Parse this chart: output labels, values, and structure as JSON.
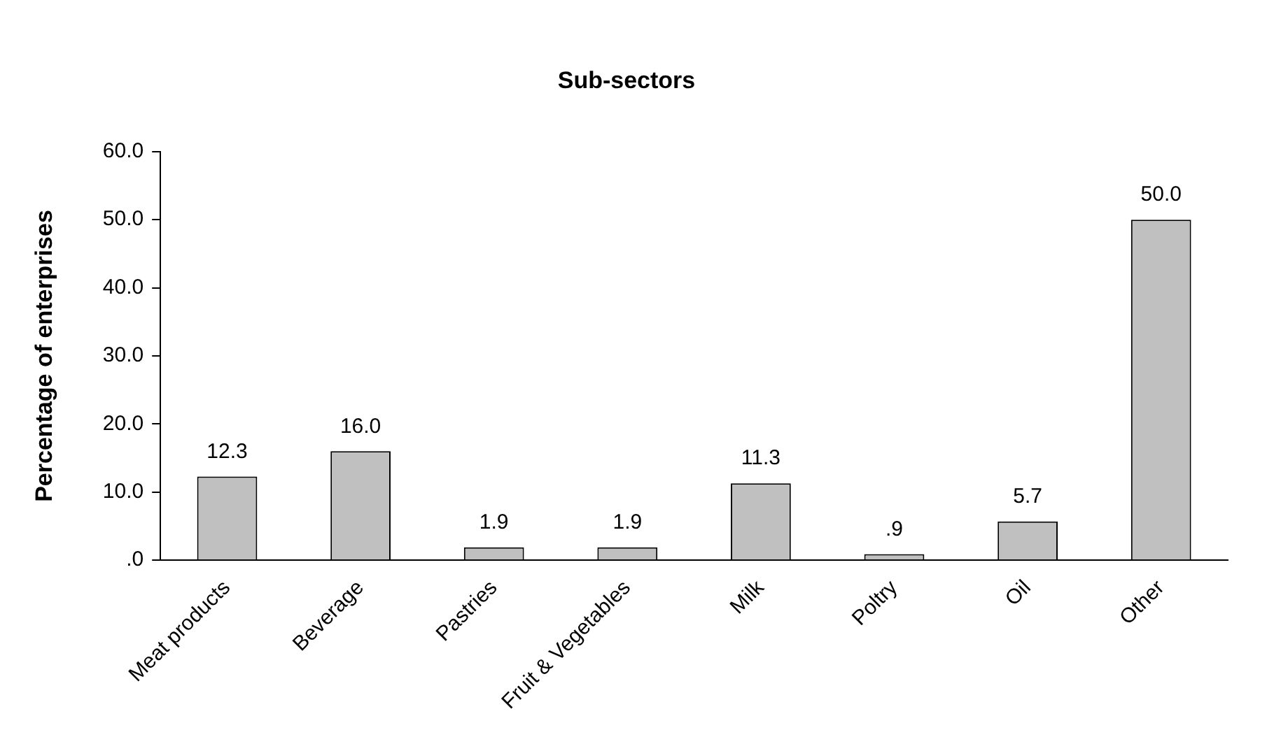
{
  "chart_data": {
    "type": "bar",
    "title": "Sub-sectors",
    "ylabel": "Percentage of enterprises",
    "categories": [
      "Meat products",
      "Beverage",
      "Pastries",
      "Fruit & Vegetables",
      "Milk",
      "Poltry",
      "Oil",
      "Other"
    ],
    "values": [
      12.3,
      16.0,
      1.9,
      1.9,
      11.3,
      0.9,
      5.7,
      50.0
    ],
    "value_labels": [
      "12.3",
      "16.0",
      "1.9",
      "1.9",
      "11.3",
      ".9",
      "5.7",
      "50.0"
    ],
    "color": "#c0c0c0",
    "ylim": [
      0,
      60
    ],
    "yticks": [
      {
        "value": 0,
        "label": ".0"
      },
      {
        "value": 10,
        "label": "10.0"
      },
      {
        "value": 20,
        "label": "20.0"
      },
      {
        "value": 30,
        "label": "30.0"
      },
      {
        "value": 40,
        "label": "40.0"
      },
      {
        "value": 50,
        "label": "50.0"
      },
      {
        "value": 60,
        "label": "60.0"
      }
    ],
    "grid": false,
    "legend": false
  }
}
